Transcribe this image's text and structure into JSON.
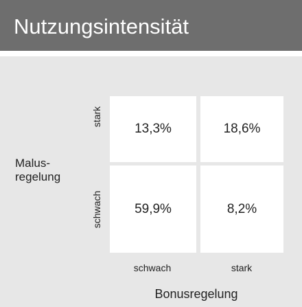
{
  "header": {
    "title": "Nutzungsintensität"
  },
  "table": {
    "row_axis_label": [
      "Malus-",
      "regelung"
    ],
    "column_axis_label": "Bonusregelung",
    "row_labels": [
      "stark",
      "schwach"
    ],
    "column_labels": [
      "schwach",
      "stark"
    ],
    "rows": [
      [
        "13,3%",
        "18,6%"
      ],
      [
        "59,9%",
        "8,2%"
      ]
    ]
  }
}
